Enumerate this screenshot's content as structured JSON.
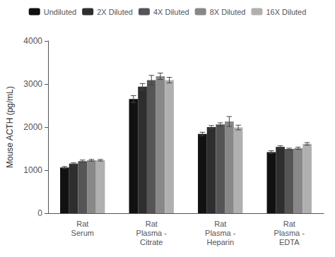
{
  "chart_data": {
    "type": "bar",
    "categories": [
      "Rat\nSerum",
      "Rat\nPlasma -\nCitrate",
      "Rat\nPlasma -\nHeparin",
      "Rat\nPlasma -\nEDTA"
    ],
    "series": [
      {
        "name": "Undiluted",
        "color": "#111111",
        "values": [
          1060,
          2650,
          1840,
          1420
        ],
        "errors": [
          25,
          80,
          40,
          30
        ]
      },
      {
        "name": "2X Diluted",
        "color": "#2e2e2e",
        "values": [
          1150,
          2940,
          2000,
          1540
        ],
        "errors": [
          20,
          70,
          35,
          25
        ]
      },
      {
        "name": "4X Diluted",
        "color": "#555555",
        "values": [
          1210,
          3090,
          2060,
          1490
        ],
        "errors": [
          25,
          110,
          40,
          20
        ]
      },
      {
        "name": "8X Diluted",
        "color": "#888888",
        "values": [
          1230,
          3180,
          2130,
          1510
        ],
        "errors": [
          20,
          75,
          115,
          25
        ]
      },
      {
        "name": "16X Diluted",
        "color": "#b0b0b0",
        "values": [
          1230,
          3090,
          1990,
          1610
        ],
        "errors": [
          18,
          65,
          55,
          30
        ]
      }
    ],
    "ylabel": "Mouse ACTH (pg/mL)",
    "ylim": [
      0,
      4000
    ],
    "yticks": [
      0,
      1000,
      2000,
      3000,
      4000
    ],
    "grid": false,
    "legend": "top"
  }
}
